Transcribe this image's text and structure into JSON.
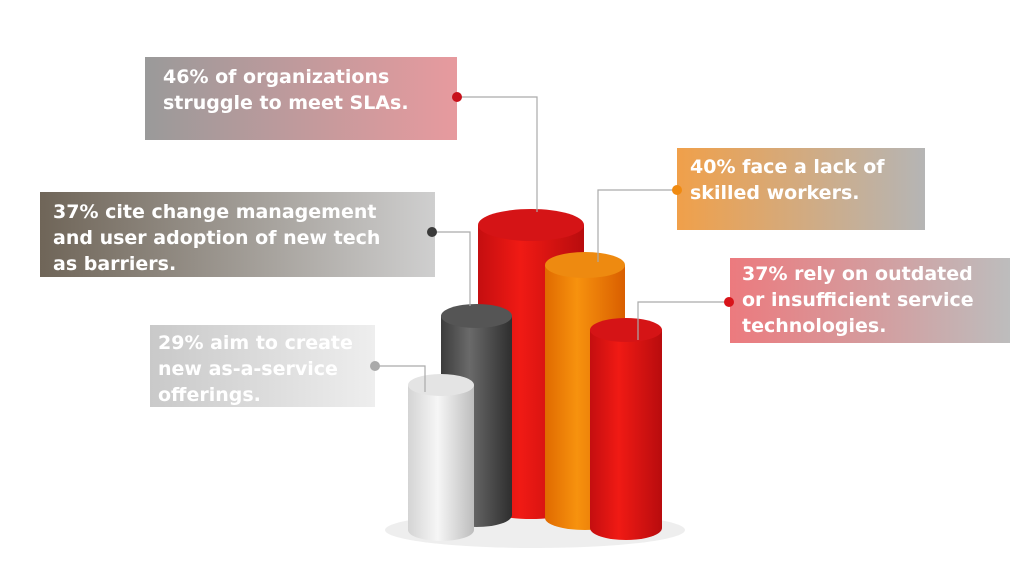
{
  "callouts": [
    {
      "lines": [
        "46% of organizations",
        "struggle to meet SLAs."
      ]
    },
    {
      "lines": [
        "37% cite change management",
        "and user adoption of new tech",
        "as barriers."
      ]
    },
    {
      "lines": [
        "29% aim to create",
        "new as-a-service",
        "offerings."
      ]
    },
    {
      "lines": [
        "40% face a lack of",
        "skilled workers."
      ]
    },
    {
      "lines": [
        "37% rely on outdated",
        "or insufficient service",
        "technologies."
      ]
    }
  ]
}
